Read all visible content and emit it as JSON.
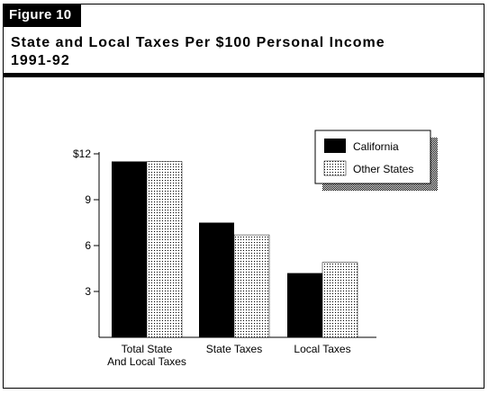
{
  "figure_label": "Figure 10",
  "title_line1": "State and Local Taxes Per $100 Personal Income",
  "title_line2": "1991-92",
  "chart_data": {
    "type": "bar",
    "categories": [
      [
        "Total State",
        "And Local Taxes"
      ],
      [
        "State Taxes"
      ],
      [
        "Local Taxes"
      ]
    ],
    "series": [
      {
        "name": "California",
        "values": [
          11.5,
          7.5,
          4.2
        ],
        "fill": "black"
      },
      {
        "name": "Other States",
        "values": [
          11.5,
          6.7,
          4.9
        ],
        "fill": "dotted"
      }
    ],
    "y_ticks": [
      {
        "value": 3,
        "label": "3"
      },
      {
        "value": 6,
        "label": "6"
      },
      {
        "value": 9,
        "label": "9"
      },
      {
        "value": 12,
        "label": "$12"
      }
    ],
    "ylim": [
      0,
      12
    ],
    "legend_position": "top-right",
    "colors": {
      "california": "#000000",
      "other_states_dots": "#000000",
      "background": "#ffffff"
    }
  }
}
